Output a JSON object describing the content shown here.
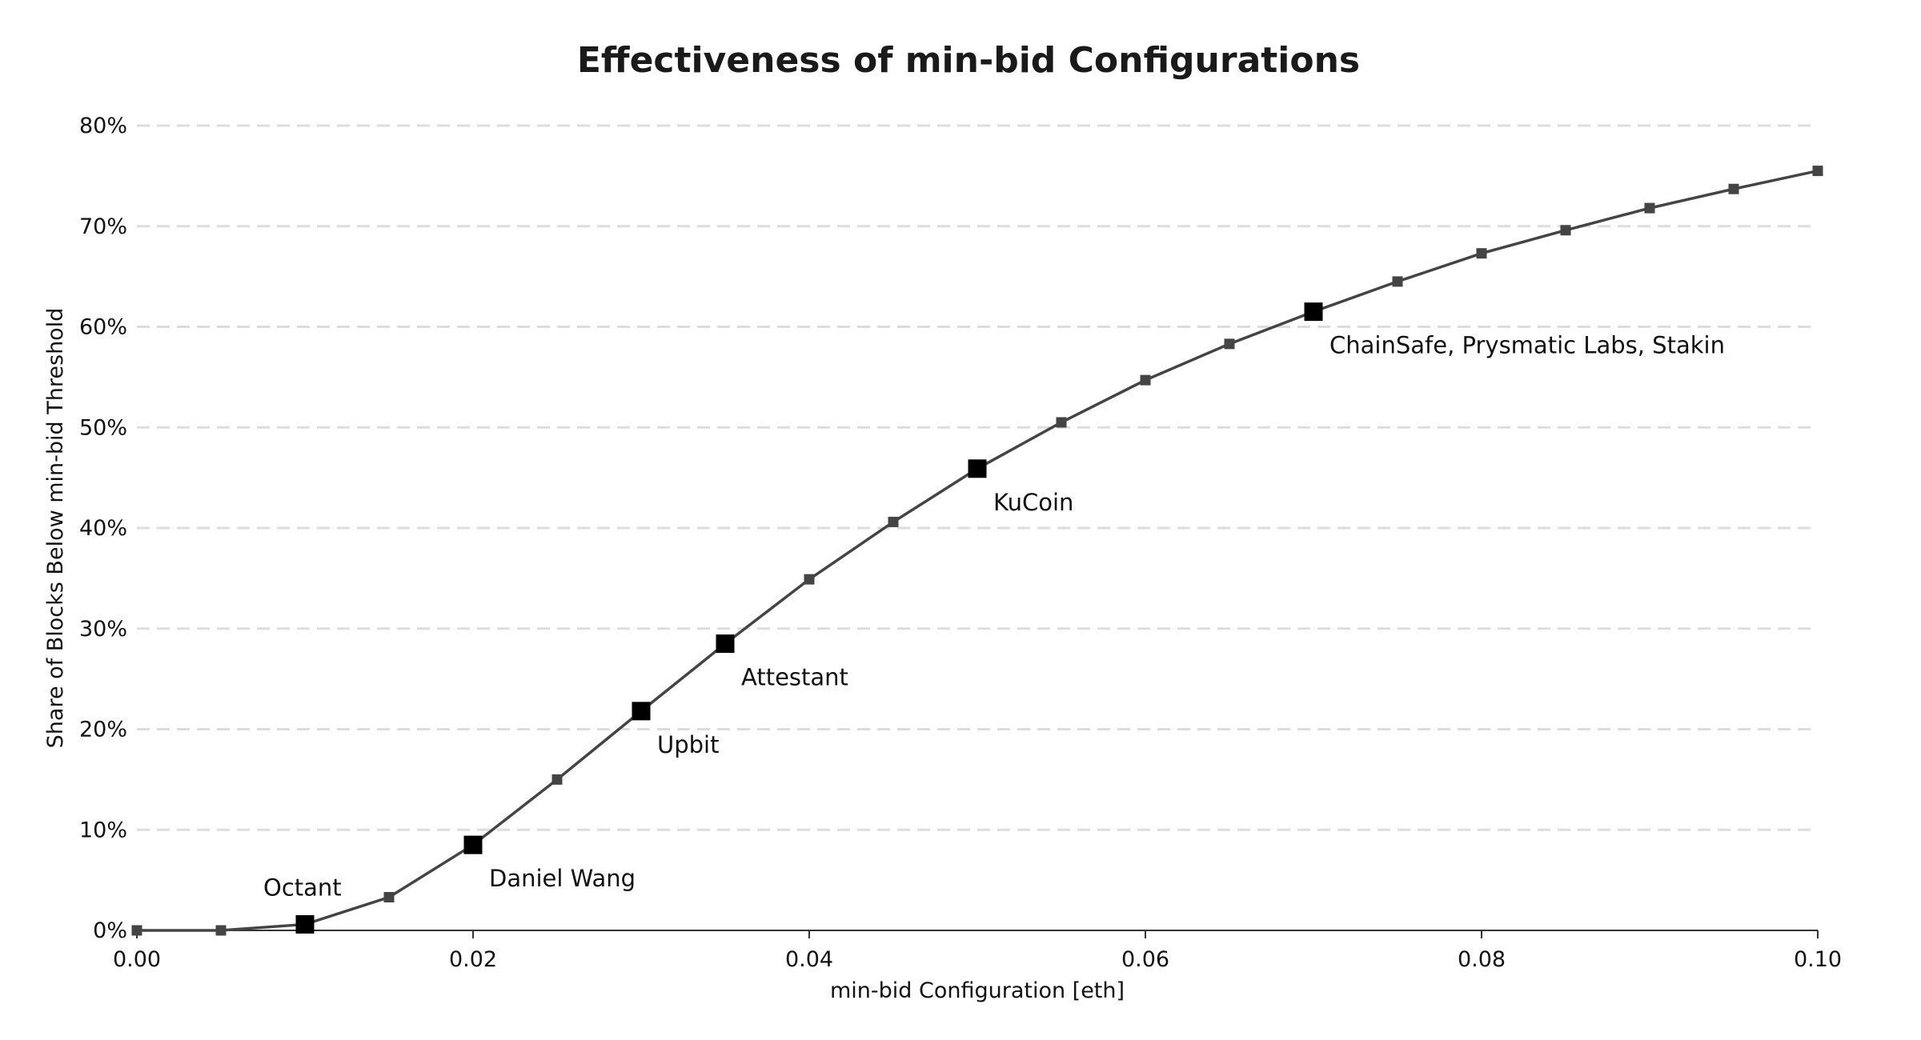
{
  "chart_data": {
    "type": "line",
    "title": "Effectiveness of min-bid Configurations",
    "xlabel": "min-bid Configuration [eth]",
    "ylabel": "Share of Blocks Below min-bid Threshold",
    "xlim": [
      0.0,
      0.1
    ],
    "ylim": [
      0,
      80
    ],
    "x_ticks": [
      0.0,
      0.02,
      0.04,
      0.06,
      0.08,
      0.1
    ],
    "x_tick_labels": [
      "0.00",
      "0.02",
      "0.04",
      "0.06",
      "0.08",
      "0.10"
    ],
    "y_ticks": [
      0,
      10,
      20,
      30,
      40,
      50,
      60,
      70,
      80
    ],
    "y_tick_labels": [
      "0%",
      "10%",
      "20%",
      "30%",
      "40%",
      "50%",
      "60%",
      "70%",
      "80%"
    ],
    "grid": "horizontal dashed",
    "series": [
      {
        "x": [
          0.0,
          0.005,
          0.01,
          0.015,
          0.02,
          0.025,
          0.03,
          0.035,
          0.04,
          0.045,
          0.05,
          0.055,
          0.06,
          0.065,
          0.07,
          0.075,
          0.08,
          0.085,
          0.09,
          0.095,
          0.1
        ],
        "y": [
          0.0,
          0.0,
          0.6,
          3.3,
          8.5,
          15.0,
          21.8,
          28.5,
          34.9,
          40.6,
          45.9,
          50.5,
          54.7,
          58.3,
          61.5,
          64.5,
          67.3,
          69.6,
          71.8,
          73.7,
          75.5
        ],
        "color": "#444444"
      }
    ],
    "annotations": [
      {
        "text": "Octant",
        "x": 0.01,
        "y": 0.6,
        "placement": "above-left"
      },
      {
        "text": "Daniel Wang",
        "x": 0.02,
        "y": 8.5,
        "placement": "below-right"
      },
      {
        "text": "Upbit",
        "x": 0.03,
        "y": 21.8,
        "placement": "below-right"
      },
      {
        "text": "Attestant",
        "x": 0.035,
        "y": 28.5,
        "placement": "below-right"
      },
      {
        "text": "KuCoin",
        "x": 0.05,
        "y": 45.9,
        "placement": "below-right"
      },
      {
        "text": "ChainSafe, Prysmatic Labs, Stakin",
        "x": 0.07,
        "y": 61.5,
        "placement": "below-right"
      }
    ],
    "highlight_color": "#000000",
    "marker_color": "#444444"
  }
}
